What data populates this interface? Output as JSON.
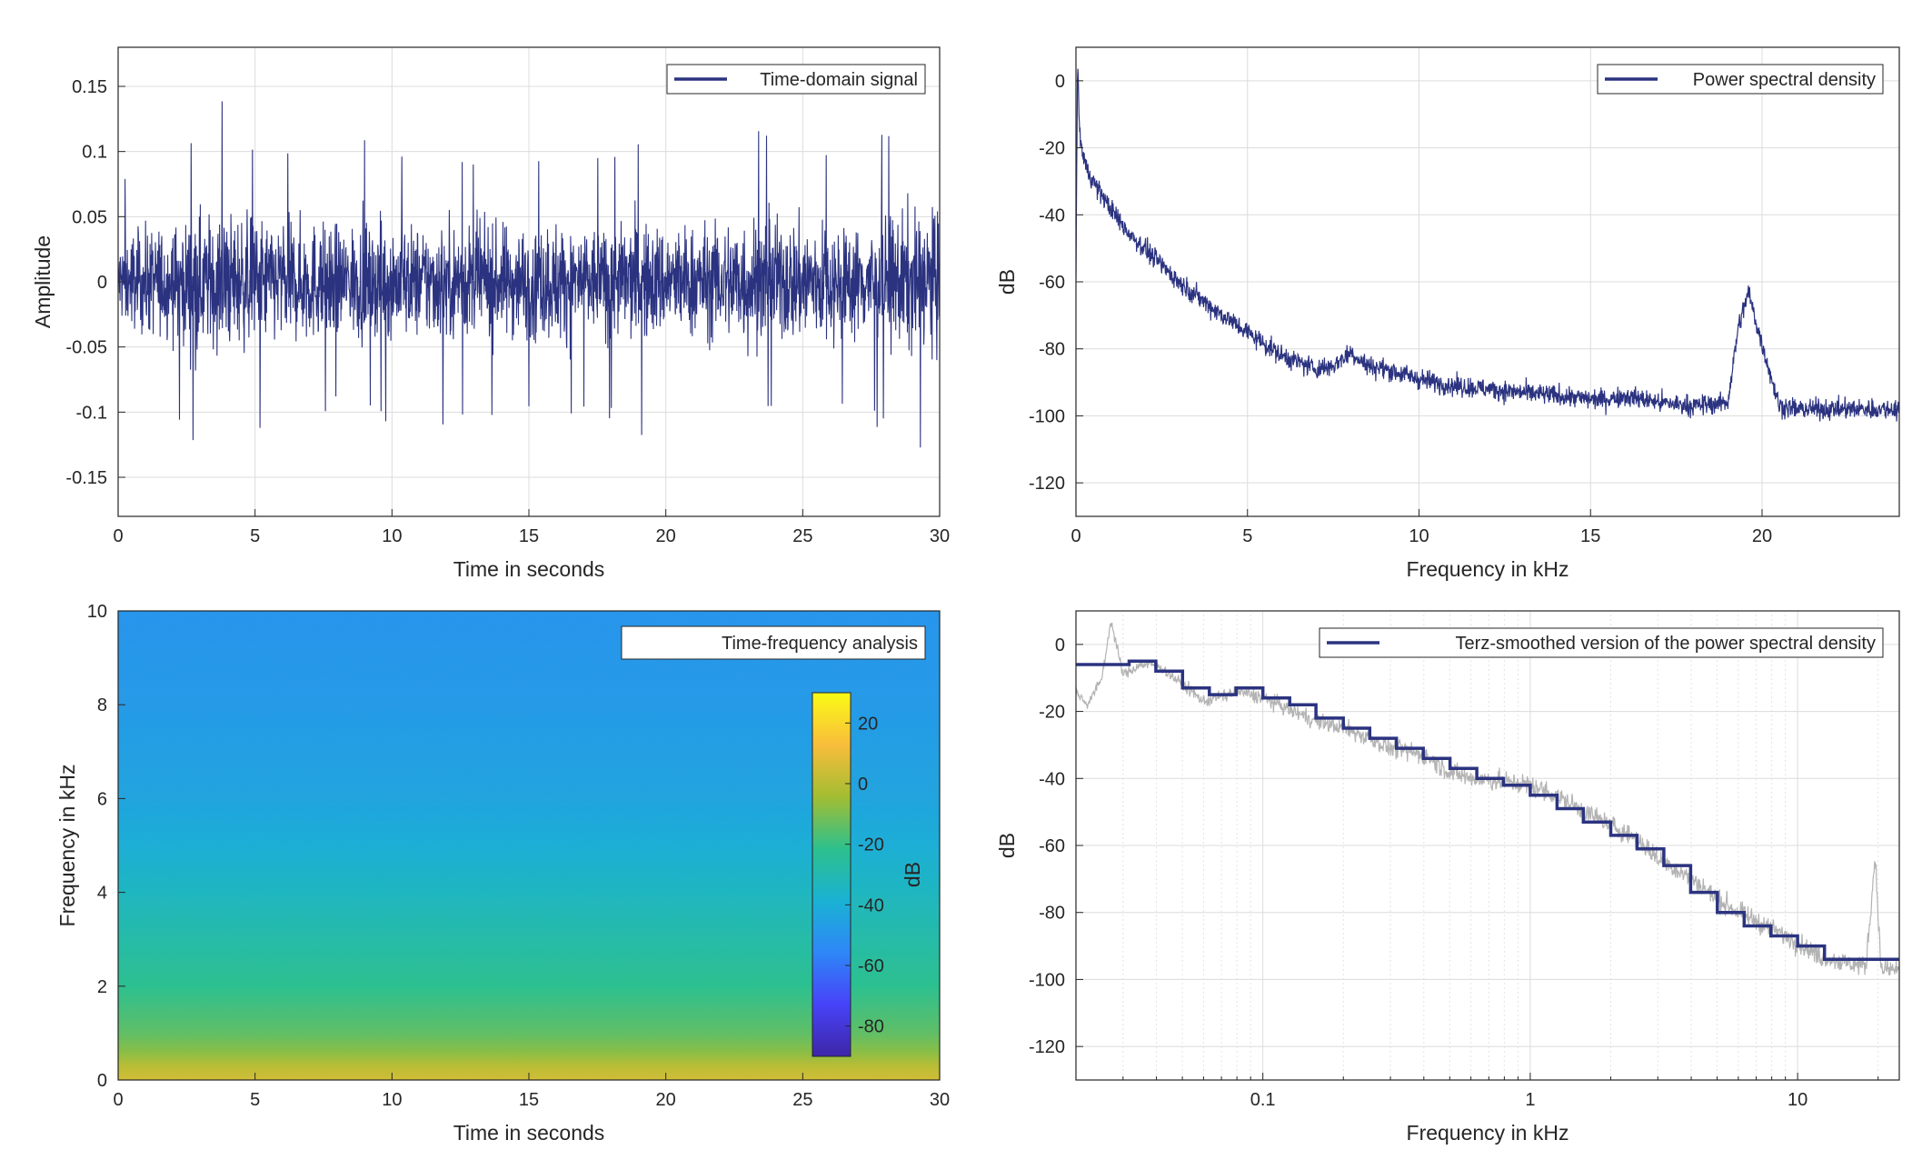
{
  "colors": {
    "series": "#2b3380",
    "raw": "#b3b3b3",
    "grid": "#dcdcdc",
    "axis": "#262626",
    "colormap": [
      "#3e26a8",
      "#4743f8",
      "#2e87f7",
      "#1ab2d3",
      "#2dc08d",
      "#a3bd32",
      "#f9bd3c",
      "#f9fb15"
    ]
  },
  "chart_data": [
    {
      "id": "time-domain",
      "type": "line",
      "xlabel": "Time in seconds",
      "ylabel": "Amplitude",
      "xlim": [
        0,
        30
      ],
      "ylim": [
        -0.18,
        0.18
      ],
      "xticks": [
        0,
        5,
        10,
        15,
        20,
        25,
        30
      ],
      "yticks": [
        -0.15,
        -0.1,
        -0.05,
        0,
        0.05,
        0.1,
        0.15
      ],
      "ytick_labels": [
        "-0.15",
        "-0.1",
        "-0.05",
        "0",
        "0.05",
        "0.1",
        "0.15"
      ],
      "grid": true,
      "legend_position": "top-right",
      "series": [
        {
          "name": "Time-domain signal",
          "envelope": {
            "x": [
              0,
              1,
              2,
              3,
              3.7,
              5,
              6,
              7,
              8,
              9,
              10,
              11,
              12,
              13,
              14,
              15,
              16,
              17,
              18,
              19,
              20,
              21,
              22,
              23,
              24,
              25,
              26,
              27,
              28,
              29,
              30
            ],
            "upper": [
              0.08,
              0.09,
              0.11,
              0.12,
              0.15,
              0.11,
              0.1,
              0.12,
              0.1,
              0.11,
              0.1,
              0.11,
              0.1,
              0.1,
              0.11,
              0.1,
              0.11,
              0.1,
              0.1,
              0.11,
              0.1,
              0.11,
              0.1,
              0.15,
              0.11,
              0.12,
              0.11,
              0.1,
              0.12,
              0.13,
              0.13
            ],
            "lower": [
              -0.08,
              -0.11,
              -0.1,
              -0.13,
              -0.11,
              -0.13,
              -0.12,
              -0.11,
              -0.1,
              -0.11,
              -0.11,
              -0.1,
              -0.12,
              -0.11,
              -0.1,
              -0.11,
              -0.12,
              -0.1,
              -0.11,
              -0.12,
              -0.11,
              -0.1,
              -0.12,
              -0.11,
              -0.11,
              -0.12,
              -0.11,
              -0.1,
              -0.12,
              -0.14,
              -0.14
            ]
          }
        }
      ]
    },
    {
      "id": "psd-linear",
      "type": "line",
      "xlabel": "Frequency in kHz",
      "ylabel": "dB",
      "xlim": [
        0,
        24
      ],
      "ylim": [
        -130,
        10
      ],
      "xticks": [
        0,
        5,
        10,
        15,
        20
      ],
      "yticks": [
        -120,
        -100,
        -80,
        -60,
        -40,
        -20,
        0
      ],
      "grid": true,
      "legend_position": "top-right",
      "series": [
        {
          "name": "Power spectral density",
          "x": [
            0,
            0.05,
            0.1,
            0.2,
            0.3,
            0.5,
            1,
            1.5,
            2,
            2.5,
            3,
            3.5,
            4,
            5,
            6,
            7,
            7.5,
            8,
            8.5,
            9,
            10,
            11,
            12,
            13,
            14,
            15,
            15.5,
            16,
            17,
            18,
            19,
            19.3,
            19.6,
            19.9,
            20.5,
            21,
            22,
            23,
            24
          ],
          "y": [
            -58,
            8,
            -15,
            -22,
            -26,
            -30,
            -38,
            -45,
            -50,
            -55,
            -60,
            -64,
            -68,
            -75,
            -82,
            -86,
            -85,
            -81,
            -85,
            -86,
            -89,
            -91,
            -92,
            -93,
            -94,
            -95,
            -95,
            -94,
            -96,
            -97,
            -96,
            -74,
            -63,
            -75,
            -97,
            -98,
            -98,
            -98,
            -98
          ],
          "band": 3
        }
      ]
    },
    {
      "id": "spectrogram",
      "type": "heatmap",
      "xlabel": "Time in seconds",
      "ylabel": "Frequency in kHz",
      "xlim": [
        0,
        30
      ],
      "ylim": [
        0,
        10
      ],
      "xticks": [
        0,
        5,
        10,
        15,
        20,
        25,
        30
      ],
      "yticks": [
        0,
        2,
        4,
        6,
        8,
        10
      ],
      "legend_position": "top-right",
      "legend": "Time-frequency analysis",
      "profile_freq_khz": [
        0,
        0.3,
        0.6,
        1,
        1.5,
        2,
        3,
        4,
        5,
        6,
        8,
        10
      ],
      "profile_db": [
        5,
        0,
        -8,
        -14,
        -18,
        -22,
        -28,
        -34,
        -40,
        -44,
        -48,
        -50
      ],
      "colorbar": {
        "label": "dB",
        "limits": [
          -90,
          30
        ],
        "ticks": [
          -80,
          -60,
          -40,
          -20,
          0,
          20
        ]
      }
    },
    {
      "id": "psd-terz",
      "type": "line",
      "xlabel": "Frequency in kHz",
      "ylabel": "dB",
      "xscale": "log",
      "xlim": [
        0.02,
        24
      ],
      "ylim": [
        -130,
        10
      ],
      "xticks": [
        0.1,
        1,
        10
      ],
      "xtick_labels": [
        "0.1",
        "1",
        "10"
      ],
      "yticks": [
        -120,
        -100,
        -80,
        -60,
        -40,
        -20,
        0
      ],
      "grid": true,
      "legend_position": "top-right",
      "raw": {
        "x": [
          0.02,
          0.022,
          0.025,
          0.027,
          0.03,
          0.035,
          0.04,
          0.05,
          0.06,
          0.08,
          0.1,
          0.13,
          0.16,
          0.2,
          0.25,
          0.3,
          0.4,
          0.5,
          0.6,
          0.8,
          1,
          1.3,
          1.6,
          2,
          2.5,
          3,
          4,
          5,
          6,
          8,
          10,
          12,
          15,
          18,
          19.5,
          20.5,
          24
        ],
        "y": [
          -14,
          -18,
          -10,
          7,
          -9,
          -6,
          -6,
          -12,
          -17,
          -14,
          -16,
          -20,
          -23,
          -25,
          -28,
          -31,
          -33,
          -38,
          -40,
          -41,
          -42,
          -46,
          -50,
          -54,
          -58,
          -64,
          -70,
          -76,
          -80,
          -85,
          -89,
          -93,
          -95,
          -96,
          -63,
          -97,
          -97
        ],
        "band": 3
      },
      "series": [
        {
          "name": "Terz-smoothed version of the power spectral density",
          "step_edges": [
            0.02,
            0.0316,
            0.0398,
            0.0501,
            0.0631,
            0.0794,
            0.1,
            0.126,
            0.158,
            0.2,
            0.251,
            0.316,
            0.398,
            0.501,
            0.631,
            0.794,
            1,
            1.26,
            1.58,
            2,
            2.51,
            3.16,
            3.98,
            5.01,
            6.31,
            7.94,
            10,
            12.6,
            24
          ],
          "step_values": [
            -6,
            -5,
            -8,
            -13,
            -15,
            -13,
            -16,
            -18,
            -22,
            -25,
            -28,
            -31,
            -34,
            -37,
            -40,
            -42,
            -45,
            -49,
            -53,
            -57,
            -61,
            -66,
            -74,
            -80,
            -84,
            -87,
            -90,
            -94
          ]
        }
      ]
    }
  ]
}
